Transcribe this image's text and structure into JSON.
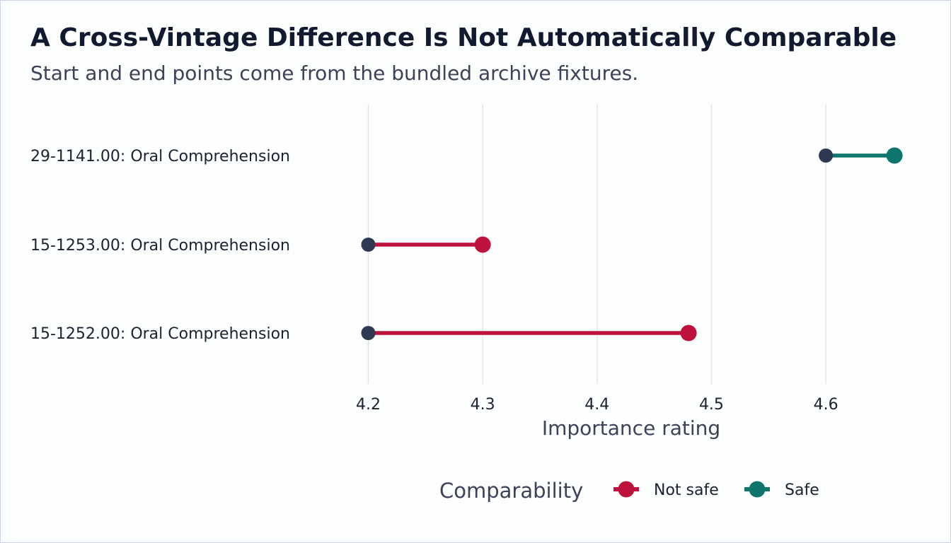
{
  "chart_data": {
    "type": "dumbbell",
    "title": "A Cross-Vintage Difference Is Not Automatically Comparable",
    "subtitle": "Start and end points come from the bundled archive fixtures.",
    "xlabel": "Importance rating",
    "ylabel": "",
    "xlim": [
      4.2,
      4.66
    ],
    "xticks": [
      4.2,
      4.3,
      4.4,
      4.5,
      4.6
    ],
    "tick_labels": [
      "4.2",
      "4.3",
      "4.4",
      "4.5",
      "4.6"
    ],
    "grid": "vertical",
    "legend": {
      "title": "Comparability",
      "placement": "bottom",
      "entries": [
        {
          "label": "Not safe",
          "color": "#be123c"
        },
        {
          "label": "Safe",
          "color": "#0f766e"
        }
      ]
    },
    "start_color": "#2f3a52",
    "rows": [
      {
        "label": "29-1141.00: Oral Comprehension",
        "start": 4.6,
        "end": 4.66,
        "comparability": "Safe"
      },
      {
        "label": "15-1253.00: Oral Comprehension",
        "start": 4.2,
        "end": 4.3,
        "comparability": "Not safe"
      },
      {
        "label": "15-1252.00: Oral Comprehension",
        "start": 4.2,
        "end": 4.48,
        "comparability": "Not safe"
      }
    ]
  }
}
